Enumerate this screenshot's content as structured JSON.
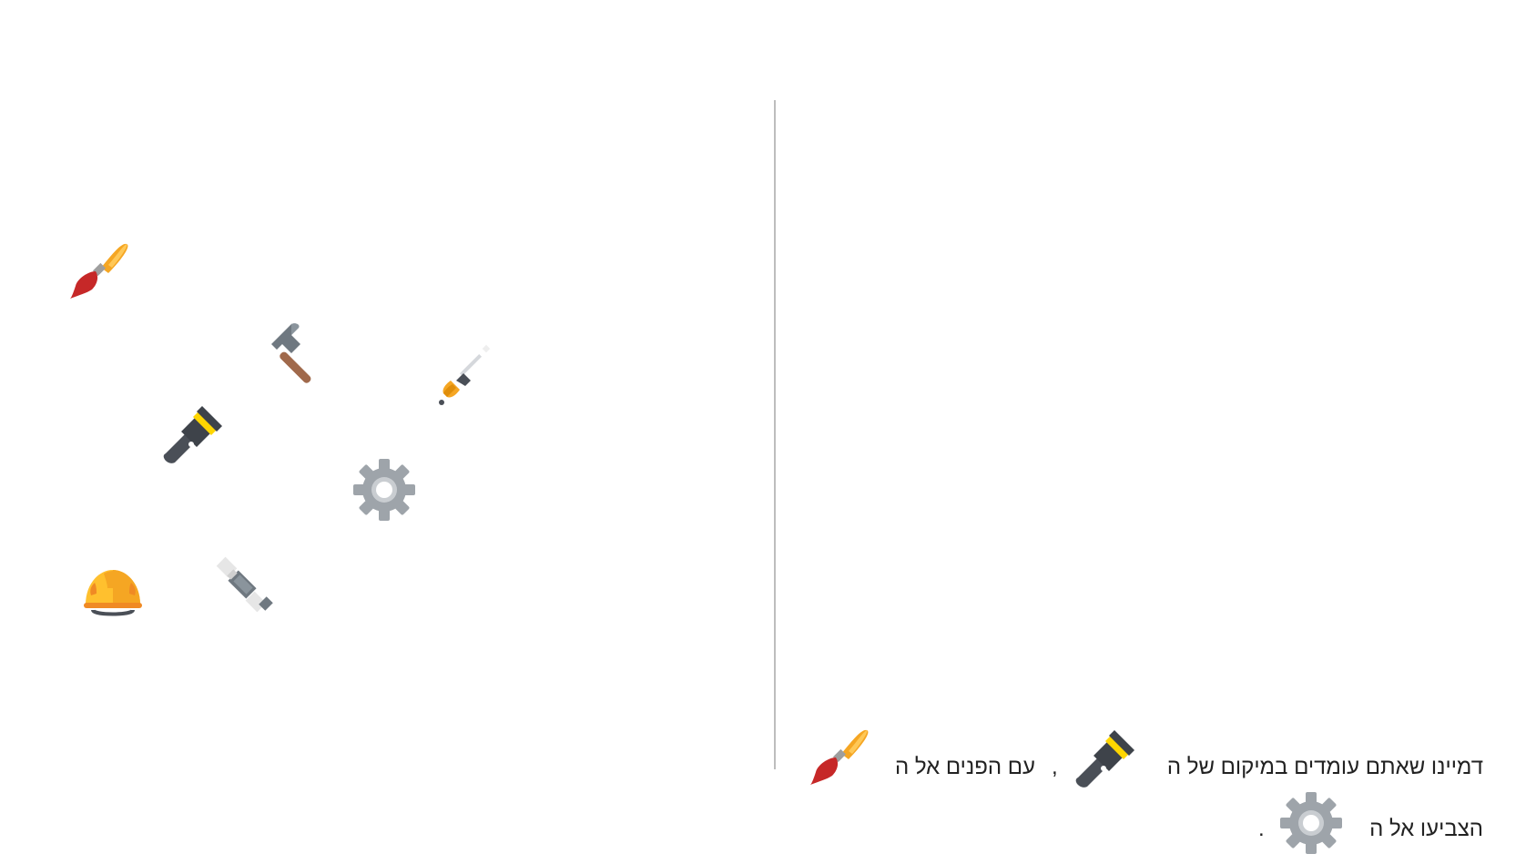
{
  "instructions": {
    "line1_part1": "דמיינו שאתם עומדים במיקום של ה",
    "line1_comma": ",",
    "line1_part2": "עם הפנים אל ה",
    "line2_part1": "הצביעו אל ה",
    "line2_period": "."
  },
  "tools": [
    {
      "name": "paintbrush-icon"
    },
    {
      "name": "hammer-icon"
    },
    {
      "name": "screwdriver-icon"
    },
    {
      "name": "flashlight-icon"
    },
    {
      "name": "gear-icon"
    },
    {
      "name": "hardhat-icon"
    },
    {
      "name": "bolt-nut-icon"
    }
  ],
  "colors": {
    "brush_handle": "#F5A623",
    "brush_tip": "#C62828",
    "flashlight_body": "#4A4F57",
    "flashlight_ring": "#FFD600",
    "gear": "#9EA4AA",
    "hardhat": "#FFC02E",
    "divider": "#BDBDBD"
  }
}
